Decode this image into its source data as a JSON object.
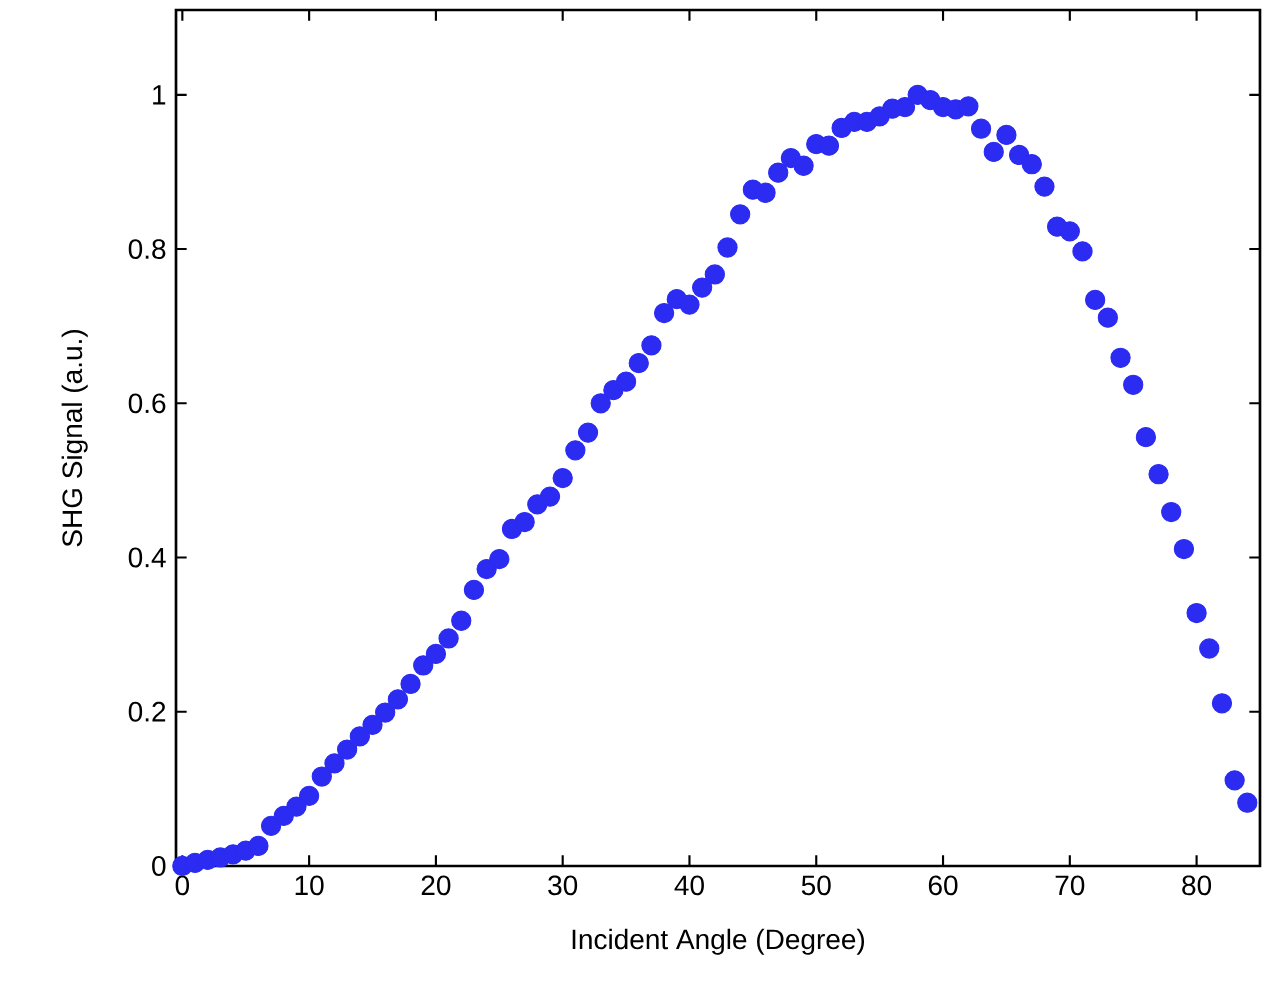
{
  "chart_data": {
    "type": "scatter",
    "xlabel": "Incident Angle (Degree)",
    "ylabel": "SHG Signal (a.u.)",
    "marker": "circle",
    "color": "#2b2bf2",
    "x": [
      0,
      1,
      2,
      3,
      4,
      5,
      6,
      7,
      8,
      9,
      10,
      11,
      12,
      13,
      14,
      15,
      16,
      17,
      18,
      19,
      20,
      21,
      22,
      23,
      24,
      25,
      26,
      27,
      28,
      29,
      30,
      31,
      32,
      33,
      34,
      35,
      36,
      37,
      38,
      39,
      40,
      41,
      42,
      43,
      44,
      45,
      46,
      47,
      48,
      49,
      50,
      51,
      52,
      53,
      54,
      55,
      56,
      57,
      58,
      59,
      60,
      61,
      62,
      63,
      64,
      65,
      66,
      67,
      68,
      69,
      70,
      71,
      72,
      73,
      74,
      75,
      76,
      77,
      78,
      79,
      80,
      81,
      82,
      83,
      84
    ],
    "values": [
      0,
      0.004,
      0.008,
      0.011,
      0.015,
      0.02,
      0.026,
      0.052,
      0.065,
      0.077,
      0.091,
      0.116,
      0.133,
      0.151,
      0.168,
      0.183,
      0.199,
      0.216,
      0.236,
      0.26,
      0.275,
      0.295,
      0.318,
      0.358,
      0.385,
      0.398,
      0.437,
      0.446,
      0.469,
      0.479,
      0.503,
      0.539,
      0.562,
      0.6,
      0.617,
      0.628,
      0.652,
      0.675,
      0.717,
      0.735,
      0.728,
      0.75,
      0.767,
      0.802,
      0.845,
      0.877,
      0.873,
      0.899,
      0.918,
      0.908,
      0.936,
      0.934,
      0.957,
      0.965,
      0.965,
      0.972,
      0.982,
      0.984,
      1.0,
      0.993,
      0.984,
      0.981,
      0.985,
      0.956,
      0.926,
      0.948,
      0.922,
      0.91,
      0.881,
      0.829,
      0.823,
      0.797,
      0.734,
      0.711,
      0.659,
      0.624,
      0.556,
      0.508,
      0.459,
      0.411,
      0.328,
      0.282,
      0.211,
      0.111,
      0.082
    ],
    "xlim": [
      -0.5,
      85
    ],
    "ylim": [
      0,
      1.11
    ],
    "xticks": [
      0,
      10,
      20,
      30,
      40,
      50,
      60,
      70,
      80
    ],
    "yticks": [
      0,
      0.2,
      0.4,
      0.6,
      0.8,
      1
    ]
  }
}
